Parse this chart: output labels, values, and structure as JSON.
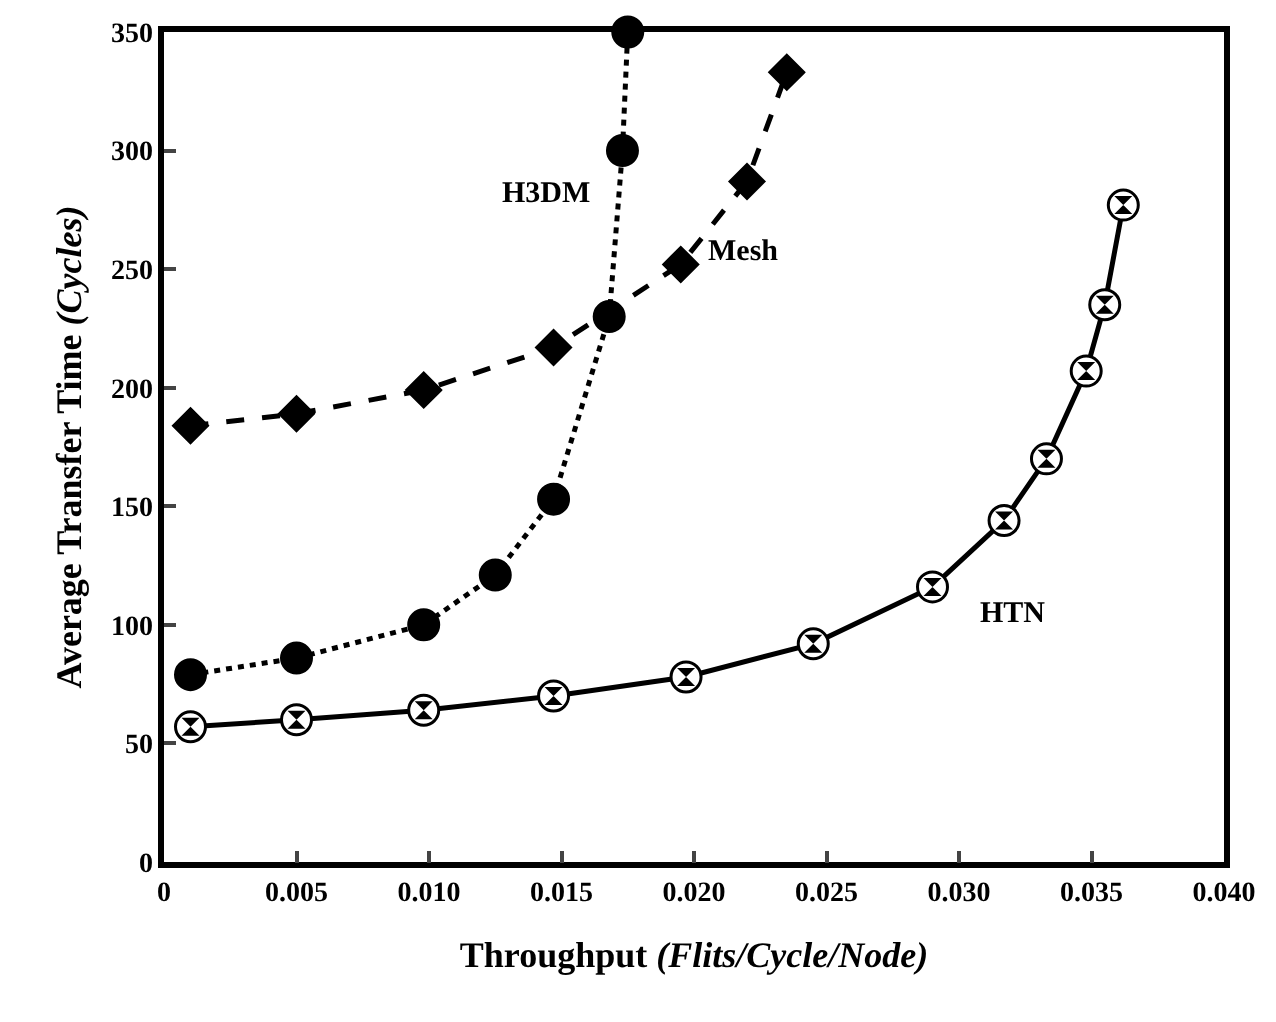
{
  "chart_data": {
    "type": "line",
    "xlabel": "Throughput (Flits/Cycle/Node)",
    "ylabel": "Average Transfer Time (Cycles)",
    "xlim": [
      0,
      0.04
    ],
    "xticks": [
      {
        "value": 0,
        "label": "0"
      },
      0.005,
      {
        "value": 0.01,
        "label": "0.010"
      },
      0.015,
      {
        "value": 0.02,
        "label": "0.020"
      },
      0.025,
      {
        "value": 0.03,
        "label": "0.030"
      },
      0.035,
      {
        "value": 0.04,
        "label": "0.040"
      }
    ],
    "ylim": [
      0,
      350
    ],
    "yticks": [
      0,
      50,
      100,
      150,
      200,
      250,
      300,
      350
    ],
    "legend": false,
    "series": [
      {
        "name": "HTN",
        "color": "#000000",
        "marker": "circle",
        "line_style": "solid",
        "x": [
          0.001,
          0.005,
          0.0098,
          0.0147,
          0.0197,
          0.0245,
          0.029,
          0.0317,
          0.0333,
          0.0348,
          0.0355,
          0.0362
        ],
        "values": [
          57,
          60,
          64,
          70,
          78,
          92,
          116,
          144,
          170,
          207,
          235,
          277
        ]
      },
      {
        "name": "H3DM",
        "color": "#000000",
        "marker": "circle",
        "line_style": "dotted",
        "x": [
          0.001,
          0.005,
          0.0098,
          0.0125,
          0.0147,
          0.0168,
          0.0173,
          0.0175
        ],
        "values": [
          79,
          86,
          100,
          121,
          153,
          230,
          300,
          350
        ]
      },
      {
        "name": "Mesh",
        "color": "#000000",
        "marker": "diamond",
        "line_style": "dashed",
        "x": [
          0.001,
          0.005,
          0.0098,
          0.0147,
          0.0195,
          0.022,
          0.0235
        ],
        "values": [
          184,
          189,
          199,
          217,
          252,
          287,
          333
        ]
      }
    ]
  }
}
